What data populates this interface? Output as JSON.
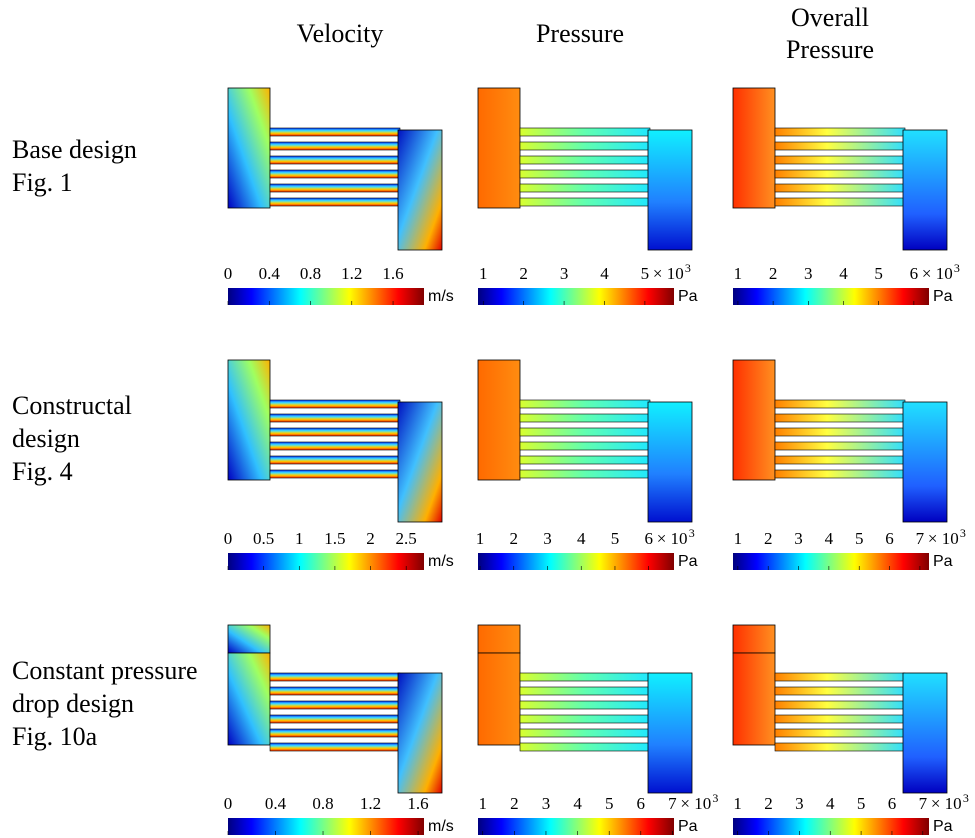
{
  "columns": [
    [
      "Velocity"
    ],
    [
      "Pressure"
    ],
    [
      "Overall",
      "Pressure"
    ]
  ],
  "rows": [
    {
      "label": [
        "Base design",
        "Fig. 1"
      ],
      "colorbars": [
        {
          "range": [
            0,
            1.9
          ],
          "ticks": [
            0,
            0.4,
            0.8,
            1.2,
            1.6
          ],
          "unit": "m/s"
        },
        {
          "range": [
            0.87,
            5.72
          ],
          "ticks": [
            1,
            2,
            3,
            4,
            5
          ],
          "multiplier": "× 10",
          "exponent": "3",
          "unit": "Pa"
        },
        {
          "range": [
            0.86,
            6.43
          ],
          "ticks": [
            1,
            2,
            3,
            4,
            5,
            6
          ],
          "multiplier": "× 10",
          "exponent": "3",
          "unit": "Pa"
        }
      ]
    },
    {
      "label": [
        "Constructal",
        "design",
        "Fig. 4"
      ],
      "colorbars": [
        {
          "range": [
            0,
            2.75
          ],
          "ticks": [
            0,
            0.5,
            1,
            1.5,
            2,
            2.5
          ],
          "unit": "m/s"
        },
        {
          "range": [
            0.94,
            6.75
          ],
          "ticks": [
            1,
            2,
            3,
            4,
            5,
            6
          ],
          "multiplier": "× 10",
          "exponent": "3",
          "unit": "Pa"
        },
        {
          "range": [
            0.84,
            7.3
          ],
          "ticks": [
            1,
            2,
            3,
            4,
            5,
            6,
            7
          ],
          "multiplier": "× 10",
          "exponent": "3",
          "unit": "Pa"
        }
      ]
    },
    {
      "label": [
        "Constant pressure",
        "drop design",
        "Fig. 10a"
      ],
      "colorbars": [
        {
          "range": [
            0,
            1.65
          ],
          "ticks": [
            0,
            0.4,
            0.8,
            1.2,
            1.6
          ],
          "unit": "m/s"
        },
        {
          "range": [
            0.85,
            7.05
          ],
          "ticks": [
            1,
            2,
            3,
            4,
            5,
            6,
            7
          ],
          "multiplier": "× 10",
          "exponent": "3",
          "unit": "Pa"
        },
        {
          "range": [
            0.85,
            7.2
          ],
          "ticks": [
            1,
            2,
            3,
            4,
            5,
            6,
            7
          ],
          "multiplier": "× 10",
          "exponent": "3",
          "unit": "Pa"
        }
      ]
    }
  ]
}
